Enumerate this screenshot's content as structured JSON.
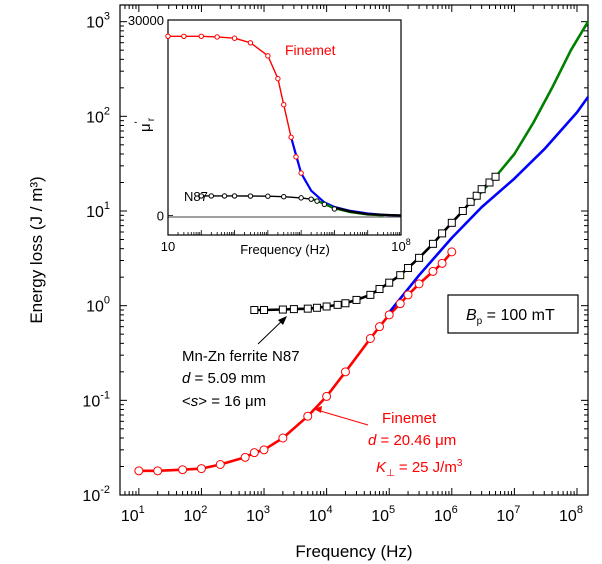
{
  "chart_data": [
    {
      "type": "line",
      "xscale": "log",
      "yscale": "log",
      "xlim": [
        5,
        150000000
      ],
      "ylim": [
        0.01,
        1500
      ],
      "xlabel": "Frequency (Hz)",
      "ylabel": "Energy loss (J / m³)",
      "x_ticks": [
        {
          "value": 10,
          "base": "10",
          "exp": "1"
        },
        {
          "value": 100,
          "base": "10",
          "exp": "2"
        },
        {
          "value": 1000,
          "base": "10",
          "exp": "3"
        },
        {
          "value": 10000,
          "base": "10",
          "exp": "4"
        },
        {
          "value": 100000,
          "base": "10",
          "exp": "5"
        },
        {
          "value": 1000000,
          "base": "10",
          "exp": "6"
        },
        {
          "value": 10000000,
          "base": "10",
          "exp": "7"
        },
        {
          "value": 100000000,
          "base": "10",
          "exp": "8"
        }
      ],
      "y_ticks": [
        {
          "value": 0.01,
          "base": "10",
          "exp": "-2"
        },
        {
          "value": 0.1,
          "base": "10",
          "exp": "-1"
        },
        {
          "value": 1,
          "base": "10",
          "exp": "0"
        },
        {
          "value": 10,
          "base": "10",
          "exp": "1"
        },
        {
          "value": 100,
          "base": "10",
          "exp": "2"
        },
        {
          "value": 1000,
          "base": "10",
          "exp": "3"
        }
      ],
      "series": [
        {
          "name": "Mn-Zn ferrite N87",
          "kind": "measured",
          "marker": "square",
          "color": "#000000",
          "x": [
            700,
            1000,
            2000,
            3000,
            5000,
            7000,
            10000,
            15000,
            20000,
            30000,
            50000,
            70000,
            100000,
            150000,
            200000,
            300000,
            500000,
            700000,
            1000000,
            1500000,
            2000000,
            2500000,
            3000000,
            4000000,
            5000000
          ],
          "y": [
            0.9,
            0.9,
            0.91,
            0.92,
            0.93,
            0.95,
            0.98,
            1.02,
            1.06,
            1.15,
            1.3,
            1.5,
            1.75,
            2.1,
            2.5,
            3.2,
            4.5,
            5.8,
            7.5,
            10,
            12.5,
            14.5,
            17,
            20,
            23
          ]
        },
        {
          "name": "Finemet",
          "kind": "measured",
          "marker": "circle",
          "color": "#ff0000",
          "x": [
            10,
            20,
            50,
            100,
            200,
            500,
            700,
            1000,
            2000,
            5000,
            10000,
            20000,
            50000,
            70000,
            100000,
            150000,
            200000,
            300000,
            500000,
            700000,
            1000000
          ],
          "y": [
            0.018,
            0.018,
            0.0185,
            0.019,
            0.021,
            0.025,
            0.028,
            0.03,
            0.04,
            0.068,
            0.11,
            0.2,
            0.45,
            0.6,
            0.8,
            1.05,
            1.3,
            1.7,
            2.3,
            2.8,
            3.7
          ]
        },
        {
          "name": "",
          "kind": "fit-finemet",
          "color": "#0000ff",
          "x": [
            100000,
            300000,
            1000000,
            3000000,
            10000000,
            30000000,
            100000000,
            150000000
          ],
          "y": [
            0.85,
            2.1,
            5.2,
            11,
            22,
            45,
            110,
            160
          ]
        },
        {
          "name": "",
          "kind": "fit-n87",
          "color": "#008000",
          "x": [
            2000000,
            3000000,
            5000000,
            10000000,
            20000000,
            40000000,
            80000000,
            150000000
          ],
          "y": [
            12,
            16,
            23,
            40,
            85,
            200,
            500,
            1000
          ]
        }
      ],
      "annotations": {
        "n87_label": {
          "line1": "Mn-Zn ferrite N87",
          "d_sym": "d",
          "d_val": " = 5.09 mm",
          "s_pre": "<",
          "s_sym": "s",
          "s_post": "> = 16 μm"
        },
        "finemet_label": {
          "line1": "Finemet",
          "d_sym": "d",
          "d_val": " = 20.46 μm",
          "k_sym": "K",
          "k_sub": "⊥",
          "k_val": " = 25 J/m",
          "k_exp": "3"
        },
        "bp_box": {
          "sym": "B",
          "sub": "p",
          "val": " = 100 mT"
        }
      }
    },
    {
      "type": "line",
      "xscale": "log",
      "yscale": "linear",
      "xlim": [
        10,
        100000000
      ],
      "ylim": [
        -3000,
        30000
      ],
      "xlabel": "Frequency (Hz)",
      "ylabel_base": "μ",
      "ylabel_prime": "'",
      "ylabel_sub": "r",
      "x_ticks": [
        {
          "value": 10,
          "label": "10",
          "exp": ""
        },
        {
          "value": 100000000,
          "label": "10",
          "exp": "8"
        }
      ],
      "y_ticks": [
        {
          "value": 0,
          "label": "0"
        },
        {
          "value": 30000,
          "label": "30000"
        }
      ],
      "series": [
        {
          "name": "Finemet",
          "marker": "circle",
          "color": "#ff0000",
          "x": [
            10,
            30,
            100,
            300,
            1000,
            3000,
            10000,
            20000,
            30000,
            50000,
            70000,
            100000
          ],
          "y": [
            27500,
            27500,
            27500,
            27400,
            27200,
            26500,
            24500,
            21000,
            17000,
            12000,
            9000,
            6500
          ]
        },
        {
          "name": "",
          "kind": "fit-blue",
          "color": "#0000ff",
          "x": [
            50000,
            100000,
            200000,
            500000,
            1000000,
            3000000,
            10000000,
            30000000,
            100000000
          ],
          "y": [
            12000,
            6500,
            3800,
            2000,
            1300,
            700,
            300,
            80,
            0
          ]
        },
        {
          "name": "N87",
          "marker": "circle",
          "color": "#000000",
          "x": [
            100,
            200,
            500,
            1000,
            3000,
            10000,
            30000,
            100000,
            200000,
            300000,
            500000,
            1000000
          ],
          "y": [
            3000,
            3000,
            3000,
            3000,
            2980,
            2950,
            2880,
            2700,
            2500,
            2200,
            1700,
            1000
          ]
        },
        {
          "name": "",
          "kind": "fit-green",
          "color": "#008000",
          "x": [
            200000,
            500000,
            1000000,
            3000000,
            10000000,
            30000000
          ],
          "y": [
            2600,
            1800,
            1100,
            500,
            150,
            30
          ]
        },
        {
          "name": "",
          "kind": "fit-black",
          "color": "#000000",
          "x": [
            1000000,
            3000000,
            10000000,
            100000000
          ],
          "y": [
            1200,
            600,
            200,
            0
          ]
        }
      ]
    }
  ]
}
